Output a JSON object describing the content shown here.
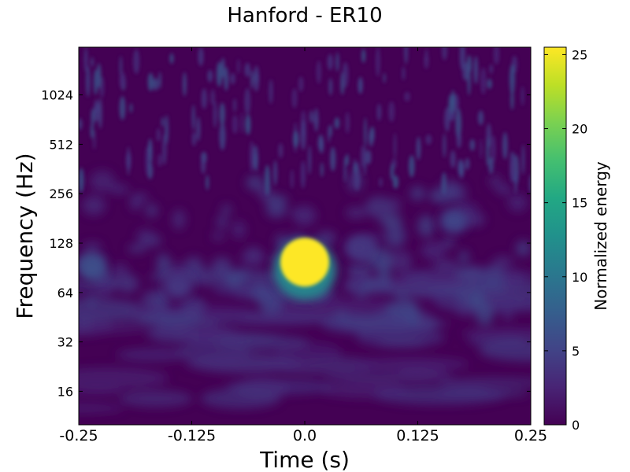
{
  "chart_data": {
    "type": "heatmap",
    "title": "Hanford - ER10",
    "xlabel": "Time (s)",
    "ylabel": "Frequency (Hz)",
    "xlim": [
      -0.25,
      0.25
    ],
    "ylim": [
      10,
      2000
    ],
    "yscale": "log2",
    "xticks": [
      -0.25,
      -0.125,
      0.0,
      0.125,
      0.25
    ],
    "xtick_labels": [
      "-0.25",
      "-0.125",
      "0.0",
      "0.125",
      "0.25"
    ],
    "yticks": [
      16,
      32,
      64,
      128,
      256,
      512,
      1024
    ],
    "ytick_labels": [
      "16",
      "32",
      "64",
      "128",
      "256",
      "512",
      "1024"
    ],
    "colormap": "viridis",
    "colorbar": {
      "label": "Normalized energy",
      "range": [
        0,
        25.5
      ],
      "ticks": [
        0,
        5,
        10,
        15,
        20,
        25
      ],
      "tick_labels": [
        "0",
        "5",
        "10",
        "15",
        "20",
        "25"
      ]
    },
    "features": [
      {
        "t": 0.0,
        "f": 98,
        "energy": 25.5,
        "note": "saturated blob"
      },
      {
        "t": -0.235,
        "f": 90,
        "energy": 6
      },
      {
        "t": 0.165,
        "f": 175,
        "energy": 5
      },
      {
        "t": -0.14,
        "f": 70,
        "energy": 4
      },
      {
        "t": 0.06,
        "f": 120,
        "energy": 4
      }
    ],
    "background_energy": 1.5,
    "grid": false
  }
}
